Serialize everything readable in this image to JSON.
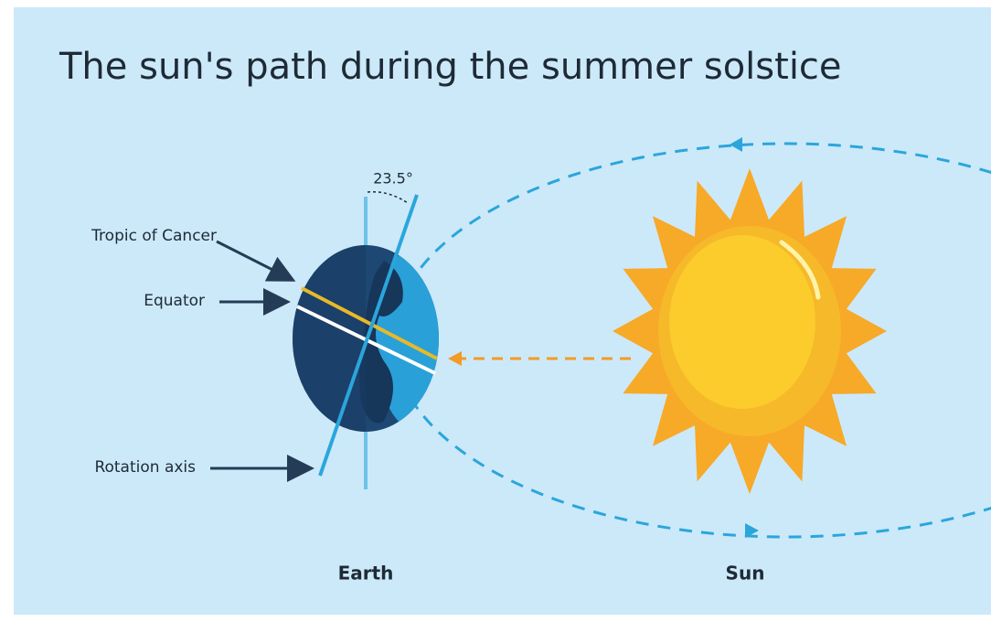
{
  "title": "The sun's path during the summer solstice",
  "angle_label": "23.5°",
  "labels": {
    "tropic": "Tropic of Cancer",
    "equator": "Equator",
    "axis": "Rotation axis"
  },
  "bodies": {
    "earth": "Earth",
    "sun": "Sun"
  }
}
